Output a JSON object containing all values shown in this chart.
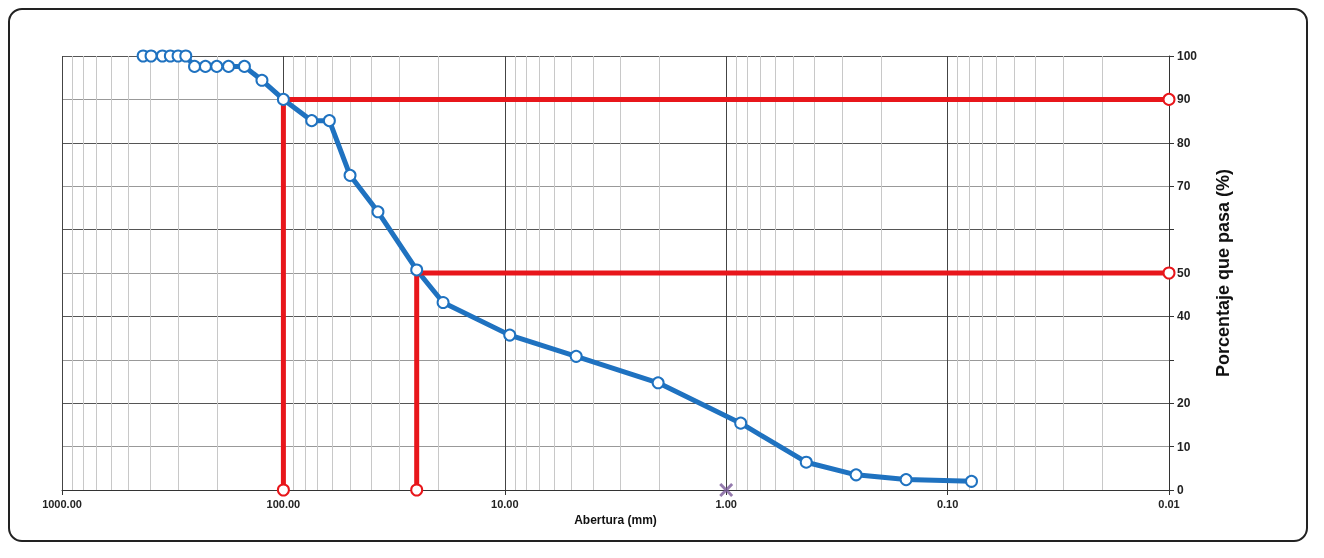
{
  "chart_data": {
    "type": "line",
    "xlabel": "Abertura (mm)",
    "ylabel": "Porcentaje que pasa (%)",
    "log": "x",
    "grid": true,
    "xlim": [
      1000,
      0.01
    ],
    "xticks": [
      {
        "value": 1000,
        "label": "1000.00"
      },
      {
        "value": 100,
        "label": "100.00"
      },
      {
        "value": 10,
        "label": "10.00"
      },
      {
        "value": 1,
        "label": "1.00"
      },
      {
        "value": 0.1,
        "label": "0.10"
      },
      {
        "value": 0.01,
        "label": "0.01"
      }
    ],
    "ylim": [
      0,
      100
    ],
    "yticks": [
      0,
      10,
      20,
      {
        "value": 30,
        "label": null
      },
      40,
      50,
      {
        "value": 60,
        "label": null
      },
      70,
      80,
      90,
      100
    ],
    "series": [
      {
        "color": "#1f72c0",
        "marker": "circle",
        "line_style": "solid",
        "x": [
          430,
          396,
          352,
          324,
          299,
          276,
          252,
          225,
          200,
          177,
          150,
          125,
          100,
          74.5,
          62,
          50,
          37.4,
          25,
          19,
          9.5,
          4.76,
          2.03,
          0.86,
          0.435,
          0.259,
          0.154,
          0.078
        ],
        "values": [
          100,
          100,
          100,
          100,
          100,
          100,
          97.6,
          97.6,
          97.6,
          97.6,
          97.6,
          94.4,
          90,
          85.1,
          85.1,
          72.5,
          64.1,
          50.7,
          43.2,
          35.7,
          30.8,
          24.7,
          15.4,
          6.4,
          3.5,
          2.4,
          2.0
        ]
      },
      {
        "color": "#e8161b",
        "marker": "circle",
        "line_style": "solid",
        "x": [
          100,
          100,
          0.01
        ],
        "values": [
          0,
          90,
          90
        ]
      },
      {
        "color": "#e8161b",
        "marker": "circle",
        "line_style": "solid",
        "x": [
          25,
          25,
          0.01
        ],
        "values": [
          0,
          50,
          50
        ]
      },
      {
        "type": "scatter",
        "color": "#7a5a9a",
        "marker": "cross",
        "x": [
          1
        ],
        "values": [
          0
        ]
      }
    ]
  }
}
